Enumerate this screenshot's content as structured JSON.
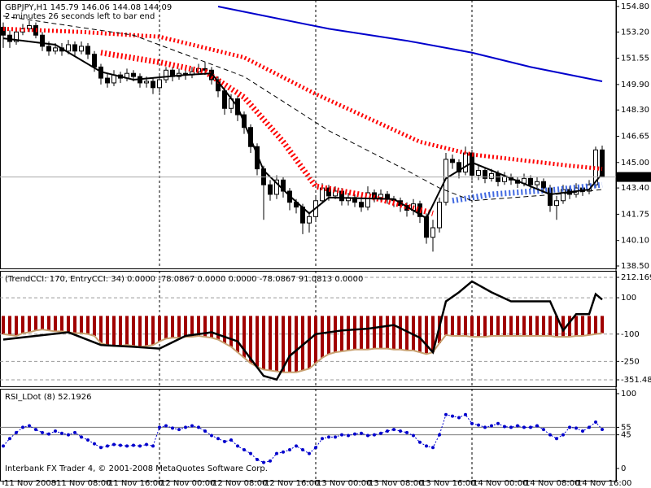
{
  "chart_data": [
    {
      "type": "candlestick",
      "title": "GBPJPY,H1 145.79 146.06 144.08 144.09",
      "subtitle": "2 minutes 26 seconds left to bar end",
      "categories": [
        "11 Nov 2008",
        null,
        null,
        null,
        null,
        null,
        null,
        null,
        "11 Nov 08:00",
        null,
        null,
        null,
        null,
        null,
        null,
        null,
        "11 Nov 16:00",
        null,
        null,
        null,
        null,
        null,
        null,
        null,
        "12 Nov 00:00",
        null,
        null,
        null,
        null,
        null,
        null,
        null,
        "12 Nov 08:00",
        null,
        null,
        null,
        null,
        null,
        null,
        null,
        "12 Nov 16:00",
        null,
        null,
        null,
        null,
        null,
        null,
        null,
        "13 Nov 00:00",
        null,
        null,
        null,
        null,
        null,
        null,
        null,
        "13 Nov 08:00",
        null,
        null,
        null,
        null,
        null,
        null,
        null,
        "13 Nov 16:00",
        null,
        null,
        null,
        null,
        null,
        null,
        null,
        "14 Nov 00:00",
        null,
        null,
        null,
        null,
        null,
        null,
        null,
        "14 Nov 08:00",
        null,
        null,
        null,
        null,
        null,
        null,
        null,
        "14 Nov 16:00",
        null,
        null,
        null,
        null
      ],
      "open": [
        153.5,
        153.0,
        152.6,
        153.2,
        153.4,
        153.6,
        153.0,
        152.3,
        152.0,
        152.2,
        152.0,
        152.4,
        152.0,
        152.3,
        151.8,
        151.0,
        150.3,
        150.0,
        150.5,
        150.3,
        150.6,
        150.4,
        150.0,
        150.1,
        149.7,
        150.2,
        150.8,
        150.4,
        150.6,
        150.5,
        150.7,
        150.9,
        150.8,
        150.2,
        149.5,
        148.4,
        149.0,
        148.0,
        147.2,
        146.0,
        144.6,
        143.6,
        143.0,
        143.9,
        143.2,
        142.5,
        142.2,
        141.2,
        141.6,
        142.6,
        143.4,
        142.9,
        143.2,
        142.6,
        142.8,
        142.5,
        142.2,
        143.1,
        142.8,
        143.0,
        142.7,
        142.6,
        142.3,
        142.0,
        142.4,
        141.6,
        140.3,
        140.9,
        142.5,
        145.2,
        145.0,
        144.4,
        145.6,
        144.2,
        144.5,
        144.0,
        144.3,
        143.8,
        144.1,
        143.9,
        143.7,
        144.0,
        143.6,
        143.8,
        143.4,
        142.3,
        142.6,
        143.3,
        143.0,
        143.4,
        143.2,
        143.6,
        145.79
      ],
      "high": [
        153.8,
        153.3,
        153.5,
        153.7,
        153.9,
        153.8,
        153.2,
        152.6,
        152.5,
        152.5,
        152.7,
        152.6,
        152.6,
        152.5,
        152.0,
        151.2,
        150.6,
        150.8,
        150.7,
        150.9,
        150.8,
        150.6,
        150.4,
        150.3,
        150.5,
        151.0,
        151.0,
        150.9,
        150.8,
        151.0,
        151.2,
        151.3,
        151.0,
        150.4,
        149.7,
        149.3,
        149.2,
        148.2,
        147.4,
        146.2,
        144.8,
        143.9,
        144.2,
        144.1,
        143.4,
        142.7,
        142.4,
        141.9,
        142.9,
        143.7,
        143.6,
        143.5,
        143.4,
        143.1,
        143.0,
        142.7,
        143.5,
        143.3,
        143.3,
        143.2,
        142.9,
        142.8,
        142.5,
        142.7,
        142.6,
        141.8,
        141.4,
        142.8,
        145.6,
        145.5,
        145.2,
        146.0,
        145.8,
        144.8,
        144.7,
        144.6,
        144.5,
        144.4,
        144.3,
        144.1,
        144.3,
        144.2,
        144.1,
        144.0,
        143.6,
        142.9,
        143.6,
        143.5,
        143.7,
        143.6,
        143.9,
        146.0,
        146.06
      ],
      "low": [
        152.2,
        152.2,
        152.4,
        153.0,
        153.2,
        152.8,
        152.0,
        151.7,
        151.8,
        151.7,
        151.8,
        151.7,
        151.8,
        151.5,
        150.7,
        149.9,
        149.7,
        149.8,
        150.0,
        150.1,
        150.1,
        149.7,
        149.7,
        149.3,
        149.4,
        150.0,
        150.1,
        150.2,
        150.2,
        150.3,
        150.5,
        150.5,
        149.9,
        149.1,
        148.0,
        148.1,
        147.6,
        146.8,
        145.6,
        144.2,
        141.4,
        142.6,
        142.7,
        142.8,
        142.0,
        141.8,
        140.5,
        140.6,
        141.3,
        142.4,
        142.6,
        142.7,
        142.3,
        142.3,
        142.2,
        141.9,
        142.0,
        142.5,
        142.6,
        142.4,
        142.2,
        141.9,
        141.6,
        141.7,
        141.2,
        139.9,
        139.4,
        140.6,
        142.3,
        144.6,
        144.0,
        144.2,
        143.9,
        143.9,
        143.7,
        143.8,
        143.5,
        143.6,
        143.6,
        143.4,
        143.5,
        143.3,
        143.4,
        143.1,
        141.9,
        141.4,
        142.4,
        142.7,
        142.8,
        142.9,
        143.0,
        143.4,
        144.08
      ],
      "close": [
        153.0,
        152.6,
        153.2,
        153.4,
        153.6,
        153.0,
        152.3,
        152.0,
        152.2,
        152.0,
        152.4,
        152.0,
        152.3,
        151.8,
        151.0,
        150.3,
        150.0,
        150.5,
        150.3,
        150.6,
        150.4,
        150.0,
        150.1,
        149.7,
        150.2,
        150.8,
        150.4,
        150.6,
        150.5,
        150.7,
        150.9,
        150.8,
        150.2,
        149.5,
        148.4,
        149.0,
        148.0,
        147.2,
        146.0,
        144.6,
        143.6,
        143.0,
        143.9,
        143.2,
        142.5,
        142.2,
        141.2,
        141.6,
        142.6,
        143.4,
        142.9,
        143.2,
        142.6,
        142.8,
        142.5,
        142.2,
        143.1,
        142.8,
        143.0,
        142.7,
        142.6,
        142.3,
        142.0,
        142.4,
        141.6,
        140.3,
        140.9,
        142.5,
        145.2,
        145.0,
        144.4,
        145.6,
        144.2,
        144.5,
        144.0,
        144.3,
        143.8,
        144.1,
        143.9,
        143.7,
        144.0,
        143.6,
        143.8,
        143.4,
        142.3,
        142.6,
        143.3,
        143.0,
        143.4,
        143.2,
        143.6,
        145.79,
        144.09
      ],
      "up_color": "#ffffff",
      "down_color": "#000000",
      "lines": [
        {
          "color": "#0000cc",
          "style": "solid",
          "width": 2,
          "x": [
            33,
            50,
            62,
            72,
            81,
            92
          ],
          "values": [
            154.8,
            153.4,
            152.65,
            151.9,
            151.0,
            150.1
          ]
        },
        {
          "color": "#ff0000",
          "style": "dots",
          "width": 5,
          "x": [
            0,
            12,
            24,
            37,
            48,
            56,
            64,
            72,
            87,
            92
          ],
          "values": [
            153.4,
            153.2,
            152.9,
            151.6,
            149.3,
            147.8,
            146.3,
            145.5,
            144.8,
            144.6
          ]
        },
        {
          "color": "#ff0000",
          "style": "dots",
          "width": 7,
          "x": [
            15,
            24,
            31,
            37,
            43,
            48,
            56,
            66
          ],
          "values": [
            151.9,
            151.3,
            150.7,
            149.1,
            146.3,
            143.5,
            142.9,
            141.8
          ]
        },
        {
          "color": "#4169e1",
          "style": "dots",
          "width": 7,
          "x": [
            69,
            75,
            85,
            92
          ],
          "values": [
            142.6,
            143.0,
            143.3,
            143.6
          ]
        },
        {
          "color": "#000000",
          "style": "dashed",
          "width": 1,
          "x": [
            0,
            20,
            37,
            50,
            62,
            67,
            72,
            85,
            92
          ],
          "values": [
            154.2,
            153.0,
            150.4,
            147.0,
            144.5,
            143.4,
            142.6,
            143.0,
            143.3
          ]
        },
        {
          "color": "#000000",
          "style": "solid",
          "width": 2,
          "x": [
            0,
            8,
            15,
            20,
            28,
            32,
            36,
            40,
            44,
            47,
            50,
            60,
            65,
            68,
            72,
            78,
            84,
            90,
            92
          ],
          "values": [
            152.8,
            152.4,
            150.7,
            150.2,
            150.5,
            150.6,
            148.5,
            144.5,
            142.9,
            141.8,
            142.8,
            142.7,
            141.5,
            144.0,
            145.0,
            144.0,
            143.0,
            143.3,
            144.3
          ]
        }
      ],
      "last_price": 144.09,
      "ylim": [
        138.5,
        154.8
      ],
      "yticks": [
        154.8,
        153.2,
        151.55,
        149.9,
        148.3,
        146.65,
        145.0,
        143.4,
        141.75,
        140.1,
        138.5
      ],
      "ytick_labels": [
        "154.80",
        "153.20",
        "151.55",
        "149.90",
        "148.30",
        "146.65",
        "145.00",
        "143.40",
        "141.75",
        "140.10",
        "138.50"
      ]
    },
    {
      "type": "indicator",
      "title": "(TrendCCI: 170, EntryCCI: 34) 0.0000 -78.0867 0.0000 0.0000 -78.0867 91.0813 0.0000",
      "bars": {
        "color": "#a00000",
        "edge_color": "#c8a070",
        "values": [
          -100,
          -105,
          -110,
          -95,
          -90,
          -80,
          -75,
          -80,
          -85,
          -85,
          -90,
          -95,
          -95,
          -100,
          -110,
          -150,
          -160,
          -165,
          -165,
          -160,
          -165,
          -170,
          -165,
          -160,
          -140,
          -125,
          -120,
          -120,
          -115,
          -115,
          -110,
          -115,
          -120,
          -130,
          -150,
          -170,
          -200,
          -230,
          -260,
          -280,
          -295,
          -300,
          -305,
          -310,
          -310,
          -310,
          -300,
          -290,
          -260,
          -230,
          -210,
          -200,
          -195,
          -190,
          -185,
          -185,
          -185,
          -180,
          -180,
          -180,
          -185,
          -185,
          -190,
          -190,
          -200,
          -210,
          -200,
          -150,
          -105,
          -110,
          -110,
          -110,
          -115,
          -115,
          -115,
          -110,
          -110,
          -110,
          -110,
          -110,
          -110,
          -110,
          -110,
          -110,
          -110,
          -115,
          -115,
          -115,
          -110,
          -110,
          -105,
          -100,
          -95
        ]
      },
      "line": {
        "color": "#000000",
        "x": [
          0,
          5,
          10,
          15,
          20,
          24,
          28,
          32,
          36,
          40,
          42,
          44,
          48,
          52,
          56,
          60,
          64,
          66,
          68,
          70,
          72,
          75,
          78,
          84,
          86,
          88,
          90,
          91,
          92
        ],
        "values": [
          -130,
          -110,
          -90,
          -160,
          -170,
          -180,
          -110,
          -90,
          -140,
          -330,
          -350,
          -220,
          -100,
          -80,
          -70,
          -50,
          -120,
          -200,
          80,
          130,
          190,
          130,
          80,
          80,
          -80,
          10,
          10,
          120,
          90
        ]
      },
      "ylim": [
        -351.482,
        212.1696
      ],
      "yticks": [
        212.1696,
        100,
        -100,
        -250,
        -351.482
      ],
      "grid": true
    },
    {
      "type": "line",
      "title": "RSI_LDot (8) 52.1926",
      "color": "#0000cc",
      "values": [
        30,
        40,
        48,
        55,
        57,
        52,
        48,
        46,
        50,
        47,
        45,
        48,
        42,
        38,
        33,
        28,
        30,
        32,
        31,
        30,
        31,
        30,
        32,
        30,
        55,
        57,
        54,
        52,
        55,
        57,
        55,
        50,
        44,
        40,
        36,
        38,
        30,
        25,
        20,
        12,
        8,
        10,
        20,
        22,
        25,
        30,
        25,
        20,
        28,
        40,
        42,
        42,
        45,
        44,
        46,
        47,
        44,
        45,
        47,
        50,
        52,
        50,
        48,
        44,
        35,
        30,
        28,
        45,
        72,
        70,
        68,
        72,
        60,
        58,
        55,
        57,
        60,
        56,
        55,
        57,
        55,
        55,
        57,
        52,
        45,
        40,
        45,
        55,
        54,
        50,
        55,
        62,
        52.1926
      ],
      "ylim": [
        0,
        100
      ],
      "yticks": [
        100,
        55,
        45,
        0
      ],
      "levels": [
        55,
        45
      ]
    }
  ],
  "footer": "Interbank FX Trader 4, © 2001-2008 MetaQuotes Software Corp."
}
